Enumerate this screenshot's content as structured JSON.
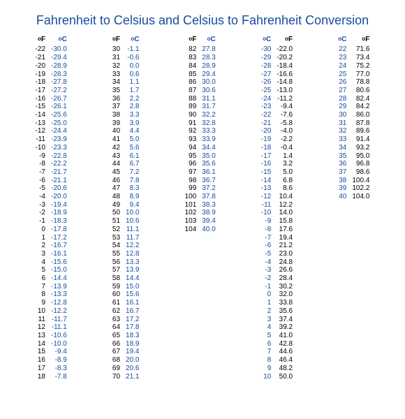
{
  "title": "Fahrenheit to Celsius and Celsius to Fahrenheit Conversion",
  "title_color": "#1a4ba0",
  "blue": "#1a4ba0",
  "black": "#000000",
  "font_family": "Arial",
  "title_fontsize": 18,
  "cell_fontsize": 10,
  "columns": [
    {
      "headers": [
        "oF",
        "oC"
      ],
      "header_colors": [
        "black",
        "blue"
      ],
      "col_colors": [
        "black",
        "blue"
      ],
      "rows": [
        [
          "-22",
          "-30.0"
        ],
        [
          "-21",
          "-29.4"
        ],
        [
          "-20",
          "-28.9"
        ],
        [
          "-19",
          "-28.3"
        ],
        [
          "-18",
          "-27.8"
        ],
        [
          "-17",
          "-27.2"
        ],
        [
          "-16",
          "-26.7"
        ],
        [
          "-15",
          "-26.1"
        ],
        [
          "-14",
          "-25.6"
        ],
        [
          "-13",
          "-25.0"
        ],
        [
          "-12",
          "-24.4"
        ],
        [
          "-11",
          "-23.9"
        ],
        [
          "-10",
          "-23.3"
        ],
        [
          "-9",
          "-22.8"
        ],
        [
          "-8",
          "-22.2"
        ],
        [
          "-7",
          "-21.7"
        ],
        [
          "-6",
          "-21.1"
        ],
        [
          "-5",
          "-20.6"
        ],
        [
          "-4",
          "-20.0"
        ],
        [
          "-3",
          "-19.4"
        ],
        [
          "-2",
          "-18.9"
        ],
        [
          "-1",
          "-18.3"
        ],
        [
          "0",
          "-17.8"
        ],
        [
          "1",
          "-17.2"
        ],
        [
          "2",
          "-16.7"
        ],
        [
          "3",
          "-16.1"
        ],
        [
          "4",
          "-15.6"
        ],
        [
          "5",
          "-15.0"
        ],
        [
          "6",
          "-14.4"
        ],
        [
          "7",
          "-13.9"
        ],
        [
          "8",
          "-13.3"
        ],
        [
          "9",
          "-12.8"
        ],
        [
          "10",
          "-12.2"
        ],
        [
          "11",
          "-11.7"
        ],
        [
          "12",
          "-11.1"
        ],
        [
          "13",
          "-10.6"
        ],
        [
          "14",
          "-10.0"
        ],
        [
          "15",
          "-9.4"
        ],
        [
          "16",
          "-8.9"
        ],
        [
          "17",
          "-8.3"
        ],
        [
          "18",
          "-7.8"
        ]
      ]
    },
    {
      "headers": [
        "oF",
        "oC"
      ],
      "header_colors": [
        "black",
        "blue"
      ],
      "col_colors": [
        "black",
        "blue"
      ],
      "rows": [
        [
          "30",
          "-1.1"
        ],
        [
          "31",
          "-0.6"
        ],
        [
          "32",
          "0.0"
        ],
        [
          "33",
          "0.6"
        ],
        [
          "34",
          "1.1"
        ],
        [
          "35",
          "1.7"
        ],
        [
          "36",
          "2.2"
        ],
        [
          "37",
          "2.8"
        ],
        [
          "38",
          "3.3"
        ],
        [
          "39",
          "3.9"
        ],
        [
          "40",
          "4.4"
        ],
        [
          "41",
          "5.0"
        ],
        [
          "42",
          "5.6"
        ],
        [
          "43",
          "6.1"
        ],
        [
          "44",
          "6.7"
        ],
        [
          "45",
          "7.2"
        ],
        [
          "46",
          "7.8"
        ],
        [
          "47",
          "8.3"
        ],
        [
          "48",
          "8.9"
        ],
        [
          "49",
          "9.4"
        ],
        [
          "50",
          "10.0"
        ],
        [
          "51",
          "10.6"
        ],
        [
          "52",
          "11.1"
        ],
        [
          "53",
          "11.7"
        ],
        [
          "54",
          "12.2"
        ],
        [
          "55",
          "12.8"
        ],
        [
          "56",
          "13.3"
        ],
        [
          "57",
          "13.9"
        ],
        [
          "58",
          "14.4"
        ],
        [
          "59",
          "15.0"
        ],
        [
          "60",
          "15.6"
        ],
        [
          "61",
          "16.1"
        ],
        [
          "62",
          "16.7"
        ],
        [
          "63",
          "17.2"
        ],
        [
          "64",
          "17.8"
        ],
        [
          "65",
          "18.3"
        ],
        [
          "66",
          "18.9"
        ],
        [
          "67",
          "19.4"
        ],
        [
          "68",
          "20.0"
        ],
        [
          "69",
          "20.6"
        ],
        [
          "70",
          "21.1"
        ]
      ]
    },
    {
      "headers": [
        "oF",
        "oC"
      ],
      "header_colors": [
        "black",
        "blue"
      ],
      "col_colors": [
        "black",
        "blue"
      ],
      "rows": [
        [
          "82",
          "27.8"
        ],
        [
          "83",
          "28.3"
        ],
        [
          "84",
          "28.9"
        ],
        [
          "85",
          "29.4"
        ],
        [
          "86",
          "30.0"
        ],
        [
          "87",
          "30.6"
        ],
        [
          "88",
          "31.1"
        ],
        [
          "89",
          "31.7"
        ],
        [
          "90",
          "32.2"
        ],
        [
          "91",
          "32.8"
        ],
        [
          "92",
          "33.3"
        ],
        [
          "93",
          "33.9"
        ],
        [
          "94",
          "34.4"
        ],
        [
          "95",
          "35.0"
        ],
        [
          "96",
          "35.6"
        ],
        [
          "97",
          "36.1"
        ],
        [
          "98",
          "36.7"
        ],
        [
          "99",
          "37.2"
        ],
        [
          "100",
          "37.8"
        ],
        [
          "101",
          "38.3"
        ],
        [
          "102",
          "38.9"
        ],
        [
          "103",
          "39.4"
        ],
        [
          "104",
          "40.0"
        ]
      ]
    },
    {
      "headers": [
        "oC",
        "oF"
      ],
      "header_colors": [
        "blue",
        "black"
      ],
      "col_colors": [
        "blue",
        "black"
      ],
      "rows": [
        [
          "-30",
          "-22.0"
        ],
        [
          "-29",
          "-20.2"
        ],
        [
          "-28",
          "-18.4"
        ],
        [
          "-27",
          "-16.6"
        ],
        [
          "-26",
          "-14.8"
        ],
        [
          "-25",
          "-13.0"
        ],
        [
          "-24",
          "-11.2"
        ],
        [
          "-23",
          "-9.4"
        ],
        [
          "-22",
          "-7.6"
        ],
        [
          "-21",
          "-5.8"
        ],
        [
          "-20",
          "-4.0"
        ],
        [
          "-19",
          "-2.2"
        ],
        [
          "-18",
          "-0.4"
        ],
        [
          "-17",
          "1.4"
        ],
        [
          "-16",
          "3.2"
        ],
        [
          "-15",
          "5.0"
        ],
        [
          "-14",
          "6.8"
        ],
        [
          "-13",
          "8.6"
        ],
        [
          "-12",
          "10.4"
        ],
        [
          "-11",
          "12.2"
        ],
        [
          "-10",
          "14.0"
        ],
        [
          "-9",
          "15.8"
        ],
        [
          "-8",
          "17.6"
        ],
        [
          "-7",
          "19.4"
        ],
        [
          "-6",
          "21.2"
        ],
        [
          "-5",
          "23.0"
        ],
        [
          "-4",
          "24.8"
        ],
        [
          "-3",
          "26.6"
        ],
        [
          "-2",
          "28.4"
        ],
        [
          "-1",
          "30.2"
        ],
        [
          "0",
          "32.0"
        ],
        [
          "1",
          "33.8"
        ],
        [
          "2",
          "35.6"
        ],
        [
          "3",
          "37.4"
        ],
        [
          "4",
          "39.2"
        ],
        [
          "5",
          "41.0"
        ],
        [
          "6",
          "42.8"
        ],
        [
          "7",
          "44.6"
        ],
        [
          "8",
          "46.4"
        ],
        [
          "9",
          "48.2"
        ],
        [
          "10",
          "50.0"
        ]
      ]
    },
    {
      "headers": [
        "oC",
        "oF"
      ],
      "header_colors": [
        "blue",
        "black"
      ],
      "col_colors": [
        "blue",
        "black"
      ],
      "rows": [
        [
          "22",
          "71.6"
        ],
        [
          "23",
          "73.4"
        ],
        [
          "24",
          "75.2"
        ],
        [
          "25",
          "77.0"
        ],
        [
          "26",
          "78.8"
        ],
        [
          "27",
          "80.6"
        ],
        [
          "28",
          "82.4"
        ],
        [
          "29",
          "84.2"
        ],
        [
          "30",
          "86.0"
        ],
        [
          "31",
          "87.8"
        ],
        [
          "32",
          "89.6"
        ],
        [
          "33",
          "91.4"
        ],
        [
          "34",
          "93.2"
        ],
        [
          "35",
          "95.0"
        ],
        [
          "36",
          "96.8"
        ],
        [
          "37",
          "98.6"
        ],
        [
          "38",
          "100.4"
        ],
        [
          "39",
          "102.2"
        ],
        [
          "40",
          "104.0"
        ]
      ]
    }
  ]
}
